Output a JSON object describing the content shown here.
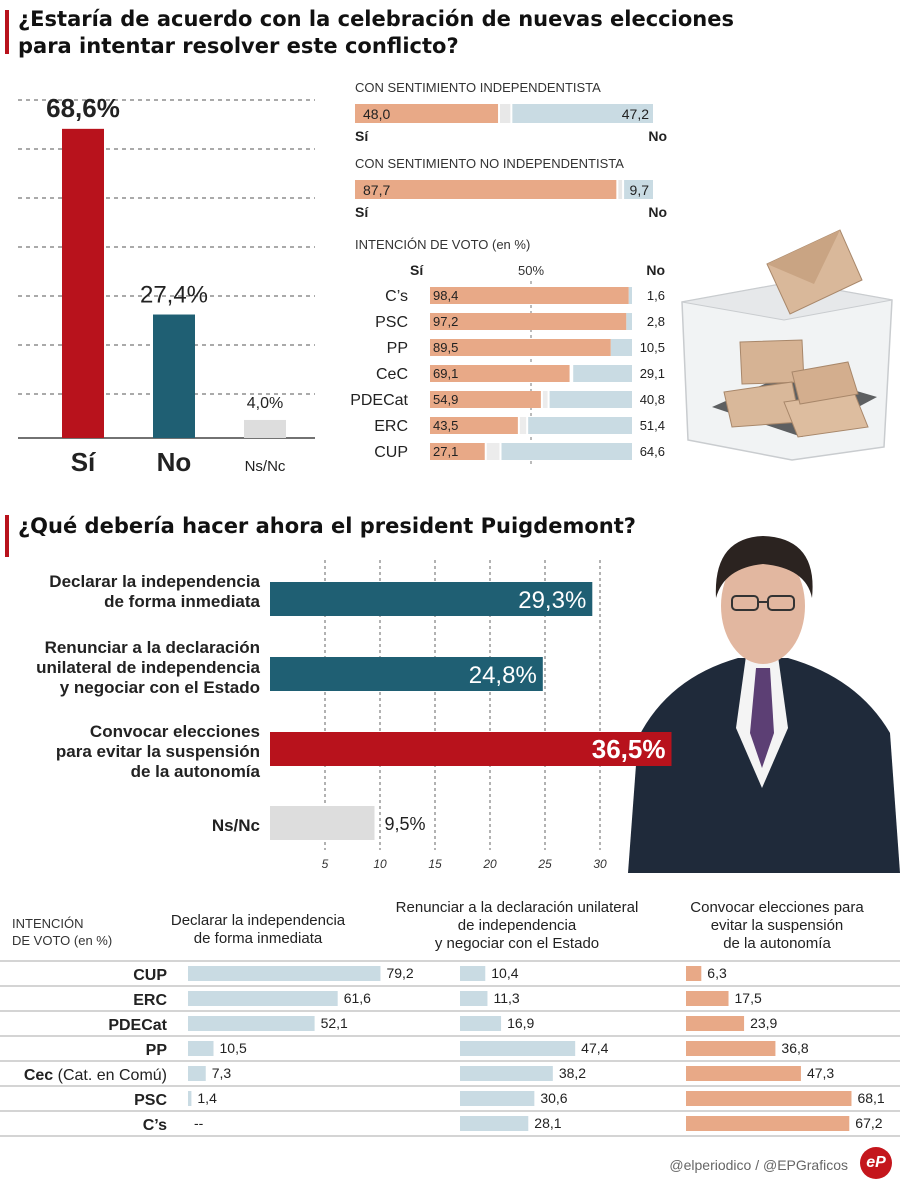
{
  "colors": {
    "red": "#b8121c",
    "teal": "#1f5f73",
    "gray": "#dddddd",
    "salmon": "#e8a987",
    "lightblue": "#c9dbe3"
  },
  "q1": {
    "title_line1": "¿Estaría de acuerdo con la celebración de nuevas elecciones",
    "title_line2": "para intentar resolver este conflicto?"
  },
  "q2": {
    "title": "¿Qué debería hacer ahora el president Puigdemont?"
  },
  "footer": "@elperiodico / @EPGraficos",
  "logo": "eP",
  "chart_data": [
    {
      "id": "overall",
      "type": "bar",
      "categories": [
        "Sí",
        "No",
        "Ns/Nc"
      ],
      "values": [
        68.6,
        27.4,
        4.0
      ],
      "value_labels": [
        "68,6%",
        "27,4%",
        "4,0%"
      ],
      "ylim": [
        0,
        75
      ]
    },
    {
      "id": "independentista",
      "type": "bar",
      "stacked": true,
      "title": "CON SENTIMIENTO INDEPENDENTISTA",
      "series": [
        {
          "name": "Sí",
          "values": [
            48.0
          ],
          "label": "48,0"
        },
        {
          "name": "No",
          "values": [
            47.2
          ],
          "label": "47,2"
        }
      ],
      "left_label": "Sí",
      "right_label": "No"
    },
    {
      "id": "no_independentista",
      "type": "bar",
      "stacked": true,
      "title": "CON SENTIMIENTO NO INDEPENDENTISTA",
      "series": [
        {
          "name": "Sí",
          "values": [
            87.7
          ],
          "label": "87,7"
        },
        {
          "name": "No",
          "values": [
            9.7
          ],
          "label": "9,7"
        }
      ],
      "left_label": "Sí",
      "right_label": "No"
    },
    {
      "id": "intencion_voto",
      "type": "bar",
      "stacked": true,
      "title": "INTENCIÓN DE VOTO (en %)",
      "mid_label": "50%",
      "si_label": "Sí",
      "no_label": "No",
      "categories": [
        "C’s",
        "PSC",
        "PP",
        "CeC",
        "PDECat",
        "ERC",
        "CUP"
      ],
      "series": [
        {
          "name": "Sí",
          "values": [
            98.4,
            97.2,
            89.5,
            69.1,
            54.9,
            43.5,
            27.1
          ],
          "labels": [
            "98,4",
            "97,2",
            "89,5",
            "69,1",
            "54,9",
            "43,5",
            "27,1"
          ]
        },
        {
          "name": "No",
          "values": [
            1.6,
            2.8,
            10.5,
            29.1,
            40.8,
            51.4,
            64.6
          ],
          "labels": [
            "1,6",
            "2,8",
            "10,5",
            "29,1",
            "40,8",
            "51,4",
            "64,6"
          ]
        }
      ]
    },
    {
      "id": "puigdemont",
      "type": "bar",
      "orientation": "horizontal",
      "categories": [
        [
          "Declarar la independencia",
          "de forma inmediata"
        ],
        [
          "Renunciar a la declaración",
          "unilateral de independencia",
          "y negociar con el Estado"
        ],
        [
          "Convocar elecciones",
          "para evitar la suspensión",
          "de la autonomía"
        ],
        [
          "Ns/Nc"
        ]
      ],
      "values": [
        29.3,
        24.8,
        36.5,
        9.5
      ],
      "value_labels": [
        "29,3%",
        "24,8%",
        "36,5%",
        "9,5%"
      ],
      "xticks": [
        5,
        10,
        15,
        20,
        25,
        30
      ],
      "xlim": [
        0,
        37
      ]
    },
    {
      "id": "intencion_opciones",
      "type": "bar",
      "orientation": "horizontal",
      "header": [
        "INTENCIÓN",
        "DE VOTO (en %)"
      ],
      "categories": [
        "CUP",
        "ERC",
        "PDECat",
        "PP",
        "Cec",
        "PSC",
        "C’s"
      ],
      "category_suffix": {
        "Cec": " (Cat. en Comú)"
      },
      "series": [
        {
          "name": [
            "Declarar la independencia",
            "de forma inmediata"
          ],
          "values": [
            79.2,
            61.6,
            52.1,
            10.5,
            7.3,
            1.4,
            null
          ],
          "labels": [
            "79,2",
            "61,6",
            "52,1",
            "10,5",
            "7,3",
            "1,4",
            "--"
          ]
        },
        {
          "name": [
            "Renunciar a la declaración unilateral",
            "de independencia",
            "y negociar con el Estado"
          ],
          "values": [
            10.4,
            11.3,
            16.9,
            47.4,
            38.2,
            30.6,
            28.1
          ],
          "labels": [
            "10,4",
            "11,3",
            "16,9",
            "47,4",
            "38,2",
            "30,6",
            "28,1"
          ]
        },
        {
          "name": [
            "Convocar elecciones para",
            "evitar la suspensión",
            "de la autonomía"
          ],
          "values": [
            6.3,
            17.5,
            23.9,
            36.8,
            47.3,
            68.1,
            67.2
          ],
          "labels": [
            "6,3",
            "17,5",
            "23,9",
            "36,8",
            "47,3",
            "68,1",
            "67,2"
          ]
        }
      ]
    }
  ]
}
